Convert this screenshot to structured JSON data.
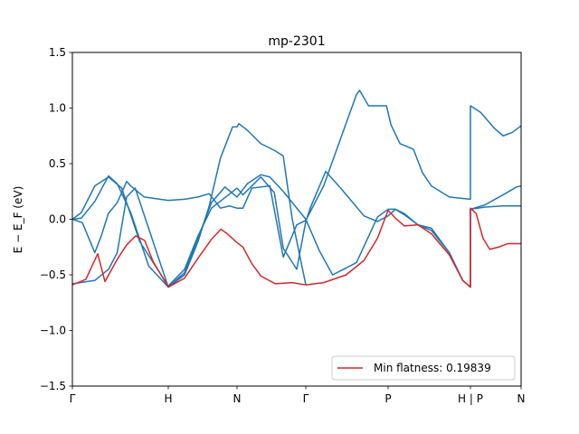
{
  "chart_data": {
    "type": "line",
    "title": "mp-2301",
    "ylabel": "E − E_F (eV)",
    "xlim": [
      0,
      1
    ],
    "ylim": [
      -1.5,
      1.5
    ],
    "yticks": [
      -1.5,
      -1.0,
      -0.5,
      0.0,
      0.5,
      1.0,
      1.5
    ],
    "ytick_labels": [
      "−1.5",
      "−1.0",
      "−0.5",
      "0.0",
      "0.5",
      "1.0",
      "1.5"
    ],
    "xticks": [
      {
        "label": "Γ",
        "x": 0.0
      },
      {
        "label": "H",
        "x": 0.2137
      },
      {
        "label": "N",
        "x": 0.3669
      },
      {
        "label": "Γ",
        "x": 0.5202
      },
      {
        "label": "P",
        "x": 0.7036
      },
      {
        "label": "H | P",
        "x": 0.8871
      },
      {
        "label": "N",
        "x": 1.0
      }
    ],
    "grid": false,
    "legend": {
      "position": "lower-right",
      "entries": [
        {
          "label": "Min flatness: 0.19839",
          "color": "#d62728"
        }
      ]
    },
    "colors": {
      "bands": "#1f77b4",
      "flat_band": "#d62728"
    },
    "series": [
      {
        "color": "#d62728",
        "points": [
          [
            0.0,
            -0.59
          ],
          [
            0.03,
            -0.54
          ],
          [
            0.0565,
            -0.31
          ],
          [
            0.0726,
            -0.56
          ],
          [
            0.1,
            -0.36
          ],
          [
            0.121,
            -0.23
          ],
          [
            0.141,
            -0.15
          ],
          [
            0.161,
            -0.19
          ],
          [
            0.18,
            -0.38
          ],
          [
            0.2137,
            -0.61
          ],
          [
            0.25,
            -0.53
          ],
          [
            0.28,
            -0.35
          ],
          [
            0.31,
            -0.18
          ],
          [
            0.331,
            -0.09
          ],
          [
            0.345,
            -0.13
          ],
          [
            0.3669,
            -0.21
          ],
          [
            0.38,
            -0.25
          ],
          [
            0.4,
            -0.4
          ],
          [
            0.42,
            -0.51
          ],
          [
            0.452,
            -0.58
          ],
          [
            0.49,
            -0.57
          ],
          [
            0.5202,
            -0.59
          ],
          [
            0.56,
            -0.57
          ],
          [
            0.61,
            -0.5
          ],
          [
            0.65,
            -0.37
          ],
          [
            0.68,
            -0.17
          ],
          [
            0.7036,
            0.08
          ],
          [
            0.72,
            0.01
          ],
          [
            0.74,
            -0.06
          ],
          [
            0.77,
            -0.05
          ],
          [
            0.8,
            -0.13
          ],
          [
            0.84,
            -0.32
          ],
          [
            0.87,
            -0.55
          ],
          [
            0.8871,
            -0.61
          ],
          [
            0.8871,
            0.1
          ],
          [
            0.9,
            0.05
          ],
          [
            0.915,
            -0.17
          ],
          [
            0.93,
            -0.27
          ],
          [
            0.95,
            -0.25
          ],
          [
            0.97,
            -0.22
          ],
          [
            1.0,
            -0.22
          ]
        ]
      },
      {
        "color": "#1f77b4",
        "points": [
          [
            0.0,
            0.0
          ],
          [
            0.02,
            0.01
          ],
          [
            0.05,
            0.16
          ],
          [
            0.0806,
            0.39
          ],
          [
            0.1,
            0.32
          ],
          [
            0.13,
            0.06
          ],
          [
            0.17,
            -0.42
          ],
          [
            0.2137,
            -0.61
          ],
          [
            0.25,
            -0.48
          ],
          [
            0.28,
            -0.17
          ],
          [
            0.31,
            0.15
          ],
          [
            0.34,
            0.29
          ],
          [
            0.3669,
            0.2
          ],
          [
            0.39,
            0.32
          ],
          [
            0.42,
            0.4
          ],
          [
            0.44,
            0.38
          ],
          [
            0.47,
            0.25
          ],
          [
            0.5202,
            0.0
          ],
          [
            0.55,
            -0.28
          ],
          [
            0.58,
            -0.5
          ],
          [
            0.6331,
            -0.39
          ],
          [
            0.68,
            0.02
          ],
          [
            0.7036,
            0.09
          ],
          [
            0.72,
            0.09
          ],
          [
            0.74,
            0.04
          ],
          [
            0.77,
            -0.05
          ],
          [
            0.8,
            -0.1
          ],
          [
            0.84,
            -0.3
          ],
          [
            0.87,
            -0.55
          ],
          [
            0.8871,
            -0.61
          ],
          [
            0.8871,
            0.09
          ],
          [
            0.92,
            0.11
          ],
          [
            0.96,
            0.12
          ],
          [
            1.0,
            0.12
          ]
        ]
      },
      {
        "color": "#1f77b4",
        "points": [
          [
            0.0,
            0.0
          ],
          [
            0.02,
            0.06
          ],
          [
            0.05,
            0.3
          ],
          [
            0.0806,
            0.38
          ],
          [
            0.11,
            0.28
          ],
          [
            0.15,
            -0.2
          ],
          [
            0.2137,
            -0.6
          ],
          [
            0.25,
            -0.45
          ],
          [
            0.28,
            -0.15
          ],
          [
            0.31,
            0.1
          ],
          [
            0.3669,
            0.28
          ],
          [
            0.38,
            0.22
          ],
          [
            0.42,
            0.38
          ],
          [
            0.45,
            0.24
          ],
          [
            0.47,
            -0.26
          ],
          [
            0.5,
            -0.45
          ],
          [
            0.5202,
            -0.02
          ],
          [
            0.53,
            0.1
          ],
          [
            0.5645,
            0.43
          ],
          [
            0.6,
            0.27
          ],
          [
            0.65,
            0.03
          ],
          [
            0.68,
            -0.02
          ],
          [
            0.7036,
            0.03
          ],
          [
            0.72,
            0.09
          ],
          [
            0.74,
            0.05
          ],
          [
            0.77,
            -0.05
          ],
          [
            0.8,
            -0.08
          ],
          [
            0.84,
            -0.3
          ],
          [
            0.87,
            -0.55
          ],
          [
            0.8871,
            -0.61
          ],
          [
            0.8871,
            0.09
          ],
          [
            0.92,
            0.13
          ],
          [
            0.96,
            0.22
          ],
          [
            0.99,
            0.29
          ],
          [
            1.0,
            0.3
          ]
        ]
      },
      {
        "color": "#1f77b4",
        "points": [
          [
            0.0,
            0.0
          ],
          [
            0.0222,
            -0.03
          ],
          [
            0.05,
            -0.3
          ],
          [
            0.0645,
            -0.15
          ],
          [
            0.08,
            0.05
          ],
          [
            0.1,
            0.15
          ],
          [
            0.121,
            0.34
          ],
          [
            0.13,
            0.3
          ],
          [
            0.16,
            0.2
          ],
          [
            0.2137,
            0.17
          ],
          [
            0.25,
            0.18
          ],
          [
            0.28,
            0.2
          ],
          [
            0.305,
            0.23
          ],
          [
            0.33,
            0.1
          ],
          [
            0.35,
            0.12
          ],
          [
            0.3669,
            0.1
          ],
          [
            0.38,
            0.1
          ],
          [
            0.4,
            0.28
          ],
          [
            0.44,
            0.3
          ],
          [
            0.47,
            -0.34
          ],
          [
            0.5,
            -0.05
          ],
          [
            0.5202,
            -0.01
          ],
          [
            0.56,
            0.3
          ],
          [
            0.6,
            0.75
          ],
          [
            0.633,
            1.12
          ],
          [
            0.64,
            1.16
          ],
          [
            0.66,
            1.02
          ],
          [
            0.7,
            1.02
          ],
          [
            0.71,
            0.85
          ],
          [
            0.73,
            0.68
          ],
          [
            0.76,
            0.63
          ],
          [
            0.78,
            0.42
          ],
          [
            0.8,
            0.3
          ],
          [
            0.84,
            0.2
          ],
          [
            0.8871,
            0.18
          ],
          [
            0.8871,
            1.02
          ],
          [
            0.91,
            0.96
          ],
          [
            0.94,
            0.82
          ],
          [
            0.96,
            0.75
          ],
          [
            0.98,
            0.78
          ],
          [
            1.0,
            0.84
          ]
        ]
      },
      {
        "color": "#1f77b4",
        "points": [
          [
            0.0,
            -0.58
          ],
          [
            0.05,
            -0.55
          ],
          [
            0.0806,
            -0.45
          ],
          [
            0.1,
            -0.3
          ],
          [
            0.121,
            0.2
          ],
          [
            0.14,
            0.28
          ],
          [
            0.2137,
            -0.61
          ],
          [
            0.25,
            -0.5
          ],
          [
            0.28,
            -0.2
          ],
          [
            0.305,
            0.12
          ],
          [
            0.33,
            0.55
          ],
          [
            0.3569,
            0.83
          ],
          [
            0.3669,
            0.83
          ],
          [
            0.371,
            0.86
          ],
          [
            0.39,
            0.8
          ],
          [
            0.42,
            0.68
          ],
          [
            0.45,
            0.62
          ],
          [
            0.4698,
            0.57
          ],
          [
            0.49,
            0.0
          ],
          [
            0.5202,
            -0.59
          ]
        ]
      }
    ]
  }
}
